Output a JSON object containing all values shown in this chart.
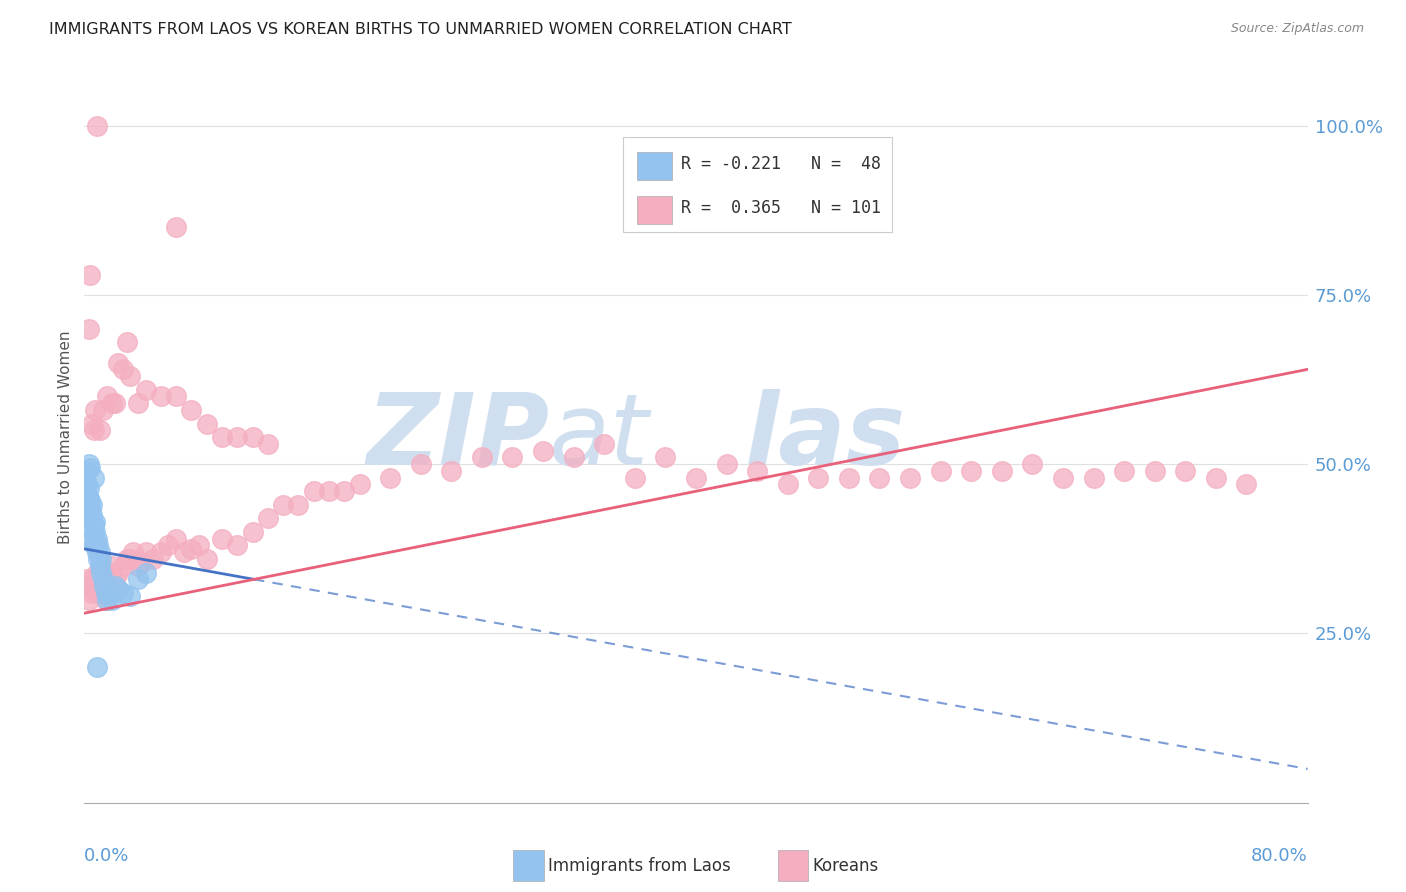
{
  "title": "IMMIGRANTS FROM LAOS VS KOREAN BIRTHS TO UNMARRIED WOMEN CORRELATION CHART",
  "source": "Source: ZipAtlas.com",
  "ylabel": "Births to Unmarried Women",
  "right_ytick_vals": [
    0.25,
    0.5,
    0.75,
    1.0
  ],
  "xlim": [
    0.0,
    0.8
  ],
  "ylim": [
    0.0,
    1.08
  ],
  "color_blue": "#93c3ee",
  "color_pink": "#f4aec0",
  "color_blue_line": "#4472c4",
  "color_pink_line": "#e8607a",
  "watermark_color": "#d0dff0",
  "background_color": "#ffffff",
  "grid_color": "#e0e0e0",
  "title_color": "#222222",
  "axis_color": "#5b9bd5",
  "blue_scatter_x": [
    0.001,
    0.001,
    0.002,
    0.002,
    0.002,
    0.003,
    0.003,
    0.003,
    0.003,
    0.004,
    0.004,
    0.004,
    0.005,
    0.005,
    0.005,
    0.005,
    0.005,
    0.006,
    0.006,
    0.006,
    0.007,
    0.007,
    0.007,
    0.008,
    0.008,
    0.009,
    0.009,
    0.01,
    0.01,
    0.011,
    0.011,
    0.012,
    0.013,
    0.014,
    0.015,
    0.016,
    0.018,
    0.02,
    0.022,
    0.025,
    0.03,
    0.035,
    0.04,
    0.002,
    0.003,
    0.004,
    0.006,
    0.008
  ],
  "blue_scatter_y": [
    0.44,
    0.46,
    0.445,
    0.455,
    0.47,
    0.42,
    0.435,
    0.45,
    0.465,
    0.425,
    0.435,
    0.445,
    0.39,
    0.405,
    0.415,
    0.425,
    0.44,
    0.38,
    0.395,
    0.41,
    0.38,
    0.4,
    0.415,
    0.37,
    0.39,
    0.36,
    0.38,
    0.35,
    0.37,
    0.34,
    0.36,
    0.33,
    0.32,
    0.31,
    0.3,
    0.31,
    0.3,
    0.32,
    0.315,
    0.31,
    0.305,
    0.33,
    0.34,
    0.49,
    0.5,
    0.495,
    0.48,
    0.2
  ],
  "pink_scatter_x": [
    0.001,
    0.002,
    0.003,
    0.004,
    0.005,
    0.005,
    0.006,
    0.007,
    0.008,
    0.009,
    0.01,
    0.011,
    0.012,
    0.013,
    0.014,
    0.015,
    0.016,
    0.017,
    0.018,
    0.02,
    0.022,
    0.025,
    0.028,
    0.03,
    0.032,
    0.035,
    0.038,
    0.04,
    0.045,
    0.05,
    0.055,
    0.06,
    0.065,
    0.07,
    0.075,
    0.08,
    0.09,
    0.1,
    0.11,
    0.12,
    0.13,
    0.14,
    0.15,
    0.16,
    0.17,
    0.18,
    0.2,
    0.22,
    0.24,
    0.26,
    0.28,
    0.3,
    0.32,
    0.34,
    0.36,
    0.38,
    0.4,
    0.42,
    0.44,
    0.46,
    0.48,
    0.5,
    0.52,
    0.54,
    0.56,
    0.58,
    0.6,
    0.62,
    0.64,
    0.66,
    0.68,
    0.7,
    0.72,
    0.74,
    0.76,
    0.005,
    0.006,
    0.007,
    0.01,
    0.012,
    0.015,
    0.018,
    0.02,
    0.025,
    0.03,
    0.035,
    0.04,
    0.05,
    0.06,
    0.07,
    0.08,
    0.09,
    0.1,
    0.11,
    0.12,
    0.003,
    0.004,
    0.008,
    0.022,
    0.028,
    0.06
  ],
  "pink_scatter_y": [
    0.32,
    0.33,
    0.3,
    0.32,
    0.31,
    0.33,
    0.315,
    0.325,
    0.34,
    0.31,
    0.32,
    0.33,
    0.34,
    0.31,
    0.3,
    0.32,
    0.33,
    0.34,
    0.35,
    0.33,
    0.34,
    0.35,
    0.36,
    0.36,
    0.37,
    0.35,
    0.355,
    0.37,
    0.36,
    0.37,
    0.38,
    0.39,
    0.37,
    0.375,
    0.38,
    0.36,
    0.39,
    0.38,
    0.4,
    0.42,
    0.44,
    0.44,
    0.46,
    0.46,
    0.46,
    0.47,
    0.48,
    0.5,
    0.49,
    0.51,
    0.51,
    0.52,
    0.51,
    0.53,
    0.48,
    0.51,
    0.48,
    0.5,
    0.49,
    0.47,
    0.48,
    0.48,
    0.48,
    0.48,
    0.49,
    0.49,
    0.49,
    0.5,
    0.48,
    0.48,
    0.49,
    0.49,
    0.49,
    0.48,
    0.47,
    0.56,
    0.55,
    0.58,
    0.55,
    0.58,
    0.6,
    0.59,
    0.59,
    0.64,
    0.63,
    0.59,
    0.61,
    0.6,
    0.6,
    0.58,
    0.56,
    0.54,
    0.54,
    0.54,
    0.53,
    0.7,
    0.78,
    1.0,
    0.65,
    0.68,
    0.85
  ],
  "blue_line_x0": 0.0,
  "blue_line_y0": 0.375,
  "blue_line_x1": 0.8,
  "blue_line_y1": 0.05,
  "pink_line_x0": 0.0,
  "pink_line_y0": 0.28,
  "pink_line_x1": 0.8,
  "pink_line_y1": 0.64
}
